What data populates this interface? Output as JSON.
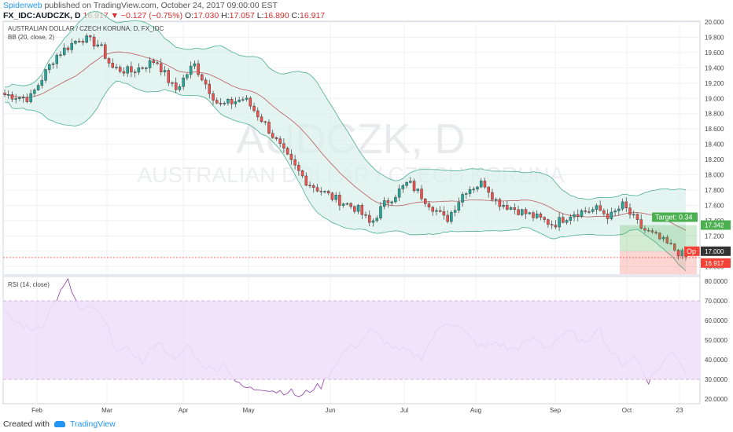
{
  "header": {
    "author": "Spiderweb",
    "published_text": "published on TradingView.com, October 24, 2017 09:00:00 EST",
    "symbol": "FX_IDC:AUDCZK, D",
    "last": "16.917",
    "change": "▼ −0.127 (−0.75%)",
    "o_label": "O:",
    "o_value": "17.030",
    "h_label": "H:",
    "h_value": "17.057",
    "l_label": "L:",
    "l_value": "16.890",
    "c_label": "C:",
    "c_value": "16.917"
  },
  "main_pane": {
    "title": "AUSTRALIAN DOLLAR / CZECH KORUNA, D, FX_IDC",
    "indicator": "BB (20, close, 2)",
    "watermark_big": "AUDCZK, D",
    "watermark_small": "AUSTRALIAN DOLLAR / CZECH KORUNA"
  },
  "rsi_pane": {
    "title": "RSI (14, close)"
  },
  "position": {
    "target_label": "Target: 0.34",
    "target_price": "17.342",
    "open_label": "Op",
    "open_price": "17.000",
    "last_price": "16.917"
  },
  "footer": {
    "created_with": "Created with",
    "brand": "TradingView"
  },
  "colors": {
    "up": "#26a69a",
    "down": "#ef5350",
    "band_fill": "#d8f0ea",
    "band_line": "#4caf8e",
    "basis": "#b85c5c",
    "rsi_line": "#9c4fae",
    "rsi_band": "#f0e0fa",
    "target_green": "#4caf50",
    "stop_red": "#f44336"
  },
  "chart_data": {
    "type": "candlestick",
    "x_tick_labels": [
      "Feb",
      "Mar",
      "Apr",
      "May",
      "Jun",
      "Jul",
      "Aug",
      "Sep",
      "Oct",
      "23"
    ],
    "price_axis": {
      "ylim": [
        16.7,
        20.0
      ],
      "ticks": [
        "20.000",
        "19.800",
        "19.600",
        "19.400",
        "19.200",
        "19.000",
        "18.800",
        "18.600",
        "18.400",
        "18.200",
        "18.000",
        "17.800",
        "17.600",
        "17.400",
        "17.200",
        "17.000",
        "16.800"
      ]
    },
    "rsi_axis": {
      "ylim": [
        18,
        82
      ],
      "ticks": [
        "80.0000",
        "70.0000",
        "60.0000",
        "50.0000",
        "40.0000",
        "30.0000",
        "20.0000"
      ],
      "overbought": 70,
      "oversold": 30
    },
    "close_path": [
      [
        0,
        19.05
      ],
      [
        4,
        19.0
      ],
      [
        8,
        19.55
      ],
      [
        12,
        19.8
      ],
      [
        15,
        19.7
      ],
      [
        17,
        19.4
      ],
      [
        20,
        19.35
      ],
      [
        24,
        19.5
      ],
      [
        27,
        19.1
      ],
      [
        30,
        19.45
      ],
      [
        34,
        18.9
      ],
      [
        38,
        19.0
      ],
      [
        41,
        18.7
      ],
      [
        45,
        18.2
      ],
      [
        48,
        17.9
      ],
      [
        52,
        17.7
      ],
      [
        56,
        17.55
      ],
      [
        58,
        17.35
      ],
      [
        60,
        17.6
      ],
      [
        64,
        17.9
      ],
      [
        67,
        17.65
      ],
      [
        70,
        17.4
      ],
      [
        73,
        17.8
      ],
      [
        76,
        17.9
      ],
      [
        78,
        17.65
      ],
      [
        81,
        17.55
      ],
      [
        84,
        17.45
      ],
      [
        87,
        17.35
      ],
      [
        90,
        17.5
      ],
      [
        94,
        17.55
      ],
      [
        96,
        17.45
      ],
      [
        98,
        17.6
      ],
      [
        101,
        17.3
      ],
      [
        104,
        17.15
      ],
      [
        108,
        16.92
      ]
    ],
    "rsi_path": [
      [
        0,
        63
      ],
      [
        2,
        59
      ],
      [
        4,
        55
      ],
      [
        6,
        58
      ],
      [
        8,
        70
      ],
      [
        10,
        80
      ],
      [
        12,
        64
      ],
      [
        14,
        67
      ],
      [
        16,
        58
      ],
      [
        18,
        44
      ],
      [
        20,
        45
      ],
      [
        22,
        38
      ],
      [
        24,
        50
      ],
      [
        26,
        44
      ],
      [
        27,
        38
      ],
      [
        29,
        48
      ],
      [
        31,
        38
      ],
      [
        33,
        35
      ],
      [
        35,
        38
      ],
      [
        37,
        27
      ],
      [
        39,
        25
      ],
      [
        41,
        26
      ],
      [
        43,
        24
      ],
      [
        45,
        24
      ],
      [
        47,
        21
      ],
      [
        49,
        26
      ],
      [
        50,
        26
      ],
      [
        52,
        36
      ],
      [
        54,
        45
      ],
      [
        56,
        48
      ],
      [
        58,
        55
      ],
      [
        60,
        50
      ],
      [
        62,
        45
      ],
      [
        64,
        44
      ],
      [
        66,
        41
      ],
      [
        68,
        52
      ],
      [
        70,
        60
      ],
      [
        72,
        57
      ],
      [
        74,
        50
      ],
      [
        76,
        46
      ],
      [
        78,
        49
      ],
      [
        80,
        45
      ],
      [
        82,
        47
      ],
      [
        84,
        51
      ],
      [
        86,
        46
      ],
      [
        88,
        52
      ],
      [
        90,
        54
      ],
      [
        92,
        47
      ],
      [
        94,
        58
      ],
      [
        96,
        44
      ],
      [
        98,
        38
      ],
      [
        100,
        42
      ],
      [
        102,
        29
      ],
      [
        104,
        37
      ],
      [
        106,
        45
      ],
      [
        108,
        34
      ]
    ],
    "candles_count": 184,
    "position_tool": {
      "entry": 17.0,
      "target": 17.342,
      "stop": 16.7
    }
  }
}
